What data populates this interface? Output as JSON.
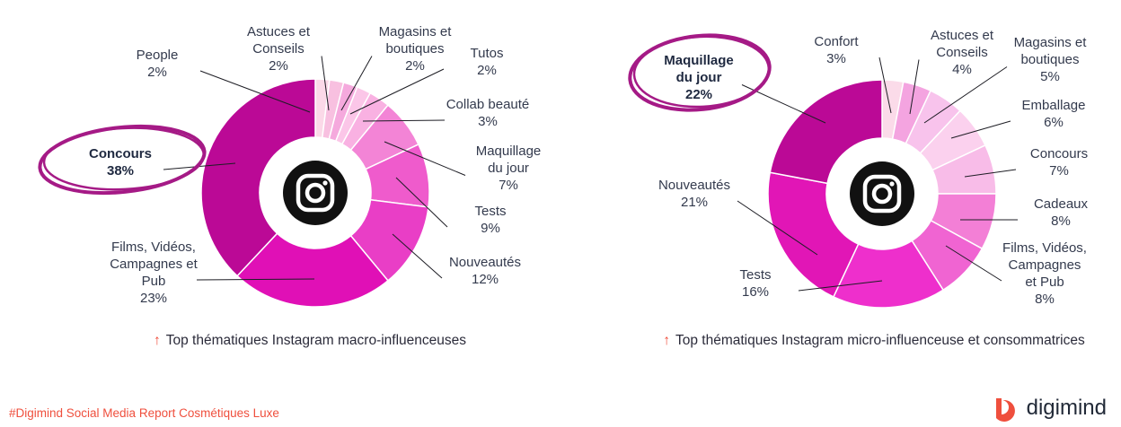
{
  "charts": [
    {
      "caption": "Top  thématiques Instagram macro-influenceuses",
      "chart_data": {
        "type": "pie",
        "title": "",
        "slices": [
          {
            "label": [
              "People"
            ],
            "pct": "2%",
            "value": 2,
            "color": "#fbd9e8"
          },
          {
            "label": [
              "Astuces et",
              "Conseils"
            ],
            "pct": "2%",
            "value": 2,
            "color": "#f8c0e0"
          },
          {
            "label": [
              "Magasins et",
              "boutiques"
            ],
            "pct": "2%",
            "value": 2,
            "color": "#f5a9dd"
          },
          {
            "label": [
              "Tutos"
            ],
            "pct": "2%",
            "value": 2,
            "color": "#fbc6e8"
          },
          {
            "label": [
              "Collab beauté"
            ],
            "pct": "3%",
            "value": 3,
            "color": "#f9b1e2"
          },
          {
            "label": [
              "Maquillage",
              "du jour"
            ],
            "pct": "7%",
            "value": 7,
            "color": "#f384d6"
          },
          {
            "label": [
              "Tests"
            ],
            "pct": "9%",
            "value": 9,
            "color": "#ef5bcc"
          },
          {
            "label": [
              "Nouveautés"
            ],
            "pct": "12%",
            "value": 12,
            "color": "#e93ec6"
          },
          {
            "label": [
              "Films, Vidéos,",
              "Campagnes et",
              "Pub"
            ],
            "pct": "23%",
            "value": 23,
            "color": "#e010b6"
          },
          {
            "label": [
              "Concours"
            ],
            "pct": "38%",
            "value": 38,
            "color": "#bb0996",
            "highlight": true
          }
        ]
      }
    },
    {
      "caption": "Top thématiques Instagram micro-influenceuse et consommatrices",
      "chart_data": {
        "type": "pie",
        "title": "",
        "slices": [
          {
            "label": [
              "Confort"
            ],
            "pct": "3%",
            "value": 3,
            "color": "#fbdbe9"
          },
          {
            "label": [
              "Astuces et",
              "Conseils"
            ],
            "pct": "4%",
            "value": 4,
            "color": "#f4a4e0"
          },
          {
            "label": [
              "Magasins et",
              "boutiques"
            ],
            "pct": "5%",
            "value": 5,
            "color": "#f8c3ec"
          },
          {
            "label": [
              "Emballage"
            ],
            "pct": "6%",
            "value": 6,
            "color": "#fbd1ee"
          },
          {
            "label": [
              "Concours"
            ],
            "pct": "7%",
            "value": 7,
            "color": "#f8bce8"
          },
          {
            "label": [
              "Cadeaux"
            ],
            "pct": "8%",
            "value": 8,
            "color": "#f37fd6"
          },
          {
            "label": [
              "Films, Vidéos,",
              "Campagnes",
              "et Pub"
            ],
            "pct": "8%",
            "value": 8,
            "color": "#f064d2"
          },
          {
            "label": [
              "Tests"
            ],
            "pct": "16%",
            "value": 16,
            "color": "#ee2fcc"
          },
          {
            "label": [
              "Nouveautés"
            ],
            "pct": "21%",
            "value": 21,
            "color": "#e116b6"
          },
          {
            "label": [
              "Maquillage",
              "du jour"
            ],
            "pct": "22%",
            "value": 22,
            "color": "#bb0996",
            "highlight": true
          }
        ]
      }
    }
  ],
  "footer": "#Digimind Social Media Report Cosmétiques Luxe",
  "brand": "digimind",
  "colors": {
    "accent": "#ef4f3d",
    "highlight_ring": "#a51a86",
    "icon": "#111111"
  },
  "icons": [
    "instagram-icon",
    "arrow-up-icon",
    "digimind-logo-icon"
  ]
}
